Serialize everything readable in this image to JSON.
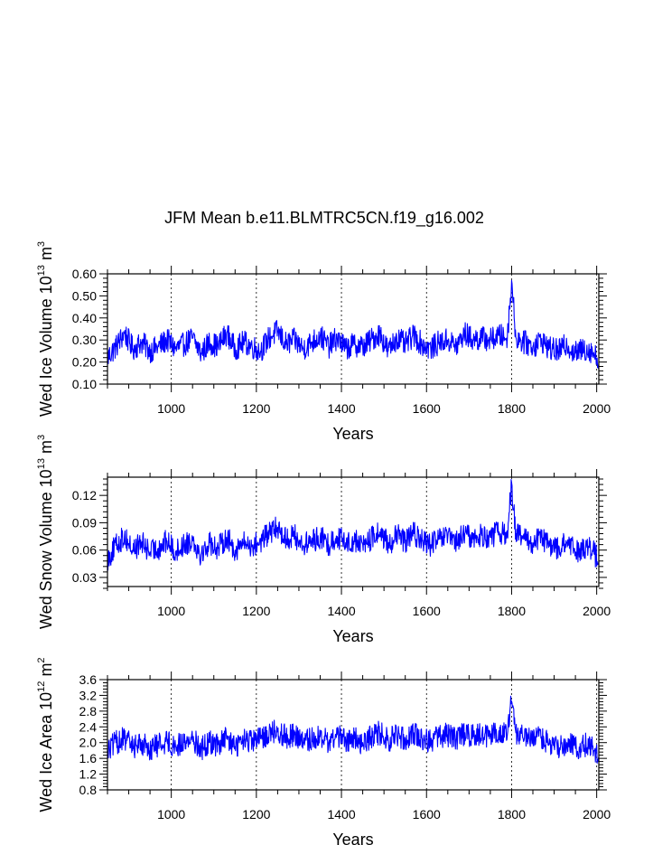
{
  "figure": {
    "title": "JFM Mean b.e11.BLMTRC5CN.f19_g16.002"
  },
  "chart_data": [
    {
      "type": "line",
      "title": "JFM Mean b.e11.BLMTRC5CN.f19_g16.002",
      "xlabel": "Years",
      "ylabel": "Wed Ice Volume 10",
      "ylabel_sup1": "13",
      "ylabel_mid": " m",
      "ylabel_sup2": "3",
      "xlim": [
        850,
        2005
      ],
      "ylim": [
        0.1,
        0.6
      ],
      "xticks": [
        1000,
        1200,
        1400,
        1600,
        1800,
        2000
      ],
      "yticks": [
        0.1,
        0.2,
        0.3,
        0.4,
        0.5,
        0.6
      ],
      "ytick_labels": [
        "0.10",
        "0.20",
        "0.30",
        "0.40",
        "0.50",
        "0.60"
      ],
      "grid": "vertical dashed at major x ticks",
      "line_color": "#0000ff",
      "series": [
        {
          "x": [
            850,
            870,
            890,
            910,
            930,
            950,
            970,
            990,
            1010,
            1030,
            1050,
            1070,
            1090,
            1110,
            1130,
            1150,
            1170,
            1190,
            1210,
            1230,
            1250,
            1270,
            1290,
            1310,
            1330,
            1350,
            1370,
            1390,
            1410,
            1430,
            1450,
            1470,
            1490,
            1510,
            1530,
            1550,
            1570,
            1590,
            1610,
            1630,
            1650,
            1670,
            1690,
            1710,
            1730,
            1750,
            1770,
            1790,
            1800,
            1810,
            1830,
            1850,
            1870,
            1890,
            1910,
            1930,
            1950,
            1970,
            1990,
            2005
          ],
          "values": [
            0.22,
            0.27,
            0.33,
            0.26,
            0.29,
            0.25,
            0.27,
            0.3,
            0.26,
            0.28,
            0.31,
            0.24,
            0.29,
            0.27,
            0.33,
            0.26,
            0.29,
            0.27,
            0.25,
            0.31,
            0.34,
            0.28,
            0.3,
            0.26,
            0.29,
            0.32,
            0.27,
            0.31,
            0.26,
            0.28,
            0.27,
            0.3,
            0.33,
            0.25,
            0.31,
            0.28,
            0.32,
            0.28,
            0.26,
            0.29,
            0.3,
            0.27,
            0.33,
            0.3,
            0.31,
            0.3,
            0.32,
            0.31,
            0.57,
            0.31,
            0.29,
            0.27,
            0.3,
            0.26,
            0.25,
            0.28,
            0.24,
            0.26,
            0.25,
            0.2
          ]
        }
      ]
    },
    {
      "type": "line",
      "xlabel": "Years",
      "ylabel": "Wed Snow Volume 10",
      "ylabel_sup1": "13",
      "ylabel_mid": " m",
      "ylabel_sup2": "3",
      "xlim": [
        850,
        2005
      ],
      "ylim": [
        0.02,
        0.14
      ],
      "xticks": [
        1000,
        1200,
        1400,
        1600,
        1800,
        2000
      ],
      "yticks": [
        0.03,
        0.06,
        0.09,
        0.12
      ],
      "ytick_labels": [
        "0.03",
        "0.06",
        "0.09",
        "0.12"
      ],
      "grid": "vertical dashed at major x ticks",
      "line_color": "#0000ff",
      "series": [
        {
          "x": [
            850,
            870,
            890,
            910,
            930,
            950,
            970,
            990,
            1010,
            1030,
            1050,
            1070,
            1090,
            1110,
            1130,
            1150,
            1170,
            1190,
            1210,
            1230,
            1250,
            1270,
            1290,
            1310,
            1330,
            1350,
            1370,
            1390,
            1410,
            1430,
            1450,
            1470,
            1490,
            1510,
            1530,
            1550,
            1570,
            1590,
            1610,
            1630,
            1650,
            1670,
            1690,
            1710,
            1730,
            1750,
            1770,
            1790,
            1800,
            1810,
            1830,
            1850,
            1870,
            1890,
            1910,
            1930,
            1950,
            1970,
            1990,
            2005
          ],
          "values": [
            0.05,
            0.065,
            0.075,
            0.06,
            0.068,
            0.058,
            0.062,
            0.07,
            0.058,
            0.066,
            0.072,
            0.055,
            0.068,
            0.062,
            0.074,
            0.06,
            0.068,
            0.064,
            0.07,
            0.078,
            0.085,
            0.072,
            0.076,
            0.065,
            0.07,
            0.074,
            0.066,
            0.075,
            0.068,
            0.07,
            0.066,
            0.072,
            0.08,
            0.066,
            0.076,
            0.07,
            0.078,
            0.07,
            0.066,
            0.072,
            0.074,
            0.068,
            0.078,
            0.072,
            0.076,
            0.074,
            0.08,
            0.076,
            0.134,
            0.078,
            0.072,
            0.068,
            0.074,
            0.064,
            0.062,
            0.068,
            0.058,
            0.064,
            0.06,
            0.048
          ]
        }
      ]
    },
    {
      "type": "line",
      "xlabel": "Years",
      "ylabel": "Wed Ice Area 10",
      "ylabel_sup1": "12",
      "ylabel_mid": " m",
      "ylabel_sup2": "2",
      "xlim": [
        850,
        2005
      ],
      "ylim": [
        0.8,
        3.6
      ],
      "xticks": [
        1000,
        1200,
        1400,
        1600,
        1800,
        2000
      ],
      "yticks": [
        0.8,
        1.2,
        1.6,
        2.0,
        2.4,
        2.8,
        3.2,
        3.6
      ],
      "ytick_labels": [
        "0.8",
        "1.2",
        "1.6",
        "2.0",
        "2.4",
        "2.8",
        "3.2",
        "3.6"
      ],
      "grid": "vertical dashed at major x ticks",
      "line_color": "#0000ff",
      "series": [
        {
          "x": [
            850,
            870,
            890,
            910,
            930,
            950,
            970,
            990,
            1010,
            1030,
            1050,
            1070,
            1090,
            1110,
            1130,
            1150,
            1170,
            1190,
            1210,
            1230,
            1250,
            1270,
            1290,
            1310,
            1330,
            1350,
            1370,
            1390,
            1410,
            1430,
            1450,
            1470,
            1490,
            1510,
            1530,
            1550,
            1570,
            1590,
            1610,
            1630,
            1650,
            1670,
            1690,
            1710,
            1730,
            1750,
            1770,
            1790,
            1800,
            1810,
            1830,
            1850,
            1870,
            1890,
            1910,
            1930,
            1950,
            1970,
            1990,
            2005
          ],
          "values": [
            1.8,
            2.0,
            2.1,
            1.9,
            2.0,
            1.85,
            1.95,
            2.05,
            1.9,
            2.0,
            2.1,
            1.85,
            2.0,
            1.95,
            2.1,
            1.9,
            2.05,
            2.0,
            2.1,
            2.25,
            2.3,
            2.15,
            2.2,
            2.0,
            2.1,
            2.15,
            2.0,
            2.2,
            2.05,
            2.1,
            2.0,
            2.15,
            2.25,
            2.05,
            2.2,
            2.1,
            2.25,
            2.1,
            2.05,
            2.15,
            2.2,
            2.1,
            2.25,
            2.15,
            2.2,
            2.15,
            2.3,
            2.2,
            3.05,
            2.25,
            2.1,
            2.05,
            2.15,
            1.95,
            1.9,
            2.0,
            1.85,
            1.95,
            1.9,
            1.6
          ]
        }
      ]
    }
  ]
}
